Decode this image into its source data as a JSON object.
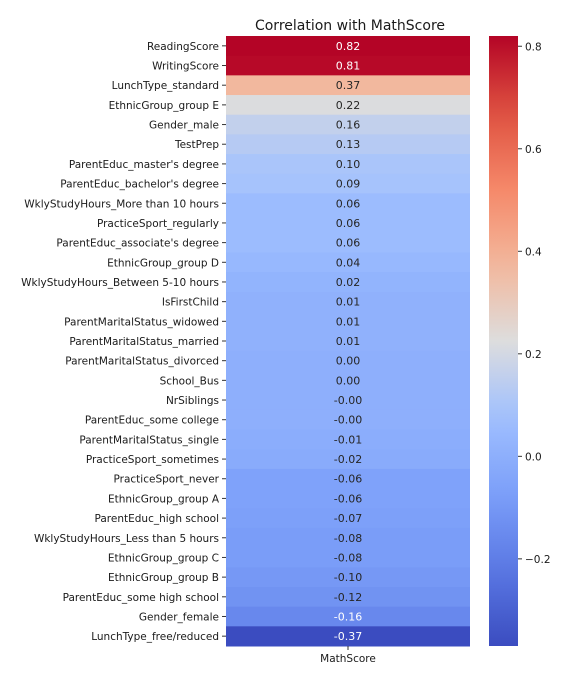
{
  "chart_data": {
    "type": "heatmap",
    "title": "Correlation with MathScore",
    "xlabel": "",
    "ylabel": "",
    "columns": [
      "MathScore"
    ],
    "rows": [
      {
        "label": "ReadingScore",
        "value": 0.82,
        "text": "0.82"
      },
      {
        "label": "WritingScore",
        "value": 0.81,
        "text": "0.81"
      },
      {
        "label": "LunchType_standard",
        "value": 0.37,
        "text": "0.37"
      },
      {
        "label": "EthnicGroup_group E",
        "value": 0.22,
        "text": "0.22"
      },
      {
        "label": "Gender_male",
        "value": 0.16,
        "text": "0.16"
      },
      {
        "label": "TestPrep",
        "value": 0.13,
        "text": "0.13"
      },
      {
        "label": "ParentEduc_master's degree",
        "value": 0.1,
        "text": "0.10"
      },
      {
        "label": "ParentEduc_bachelor's degree",
        "value": 0.09,
        "text": "0.09"
      },
      {
        "label": "WklyStudyHours_More than 10 hours",
        "value": 0.06,
        "text": "0.06"
      },
      {
        "label": "PracticeSport_regularly",
        "value": 0.06,
        "text": "0.06"
      },
      {
        "label": "ParentEduc_associate's degree",
        "value": 0.06,
        "text": "0.06"
      },
      {
        "label": "EthnicGroup_group D",
        "value": 0.04,
        "text": "0.04"
      },
      {
        "label": "WklyStudyHours_Between 5-10 hours",
        "value": 0.02,
        "text": "0.02"
      },
      {
        "label": "IsFirstChild",
        "value": 0.01,
        "text": "0.01"
      },
      {
        "label": "ParentMaritalStatus_widowed",
        "value": 0.01,
        "text": "0.01"
      },
      {
        "label": "ParentMaritalStatus_married",
        "value": 0.01,
        "text": "0.01"
      },
      {
        "label": "ParentMaritalStatus_divorced",
        "value": 0.0,
        "text": "0.00"
      },
      {
        "label": "School_Bus",
        "value": 0.0,
        "text": "0.00"
      },
      {
        "label": "NrSiblings",
        "value": -0.0,
        "text": "-0.00"
      },
      {
        "label": "ParentEduc_some college",
        "value": -0.0,
        "text": "-0.00"
      },
      {
        "label": "ParentMaritalStatus_single",
        "value": -0.01,
        "text": "-0.01"
      },
      {
        "label": "PracticeSport_sometimes",
        "value": -0.02,
        "text": "-0.02"
      },
      {
        "label": "PracticeSport_never",
        "value": -0.06,
        "text": "-0.06"
      },
      {
        "label": "EthnicGroup_group A",
        "value": -0.06,
        "text": "-0.06"
      },
      {
        "label": "ParentEduc_high school",
        "value": -0.07,
        "text": "-0.07"
      },
      {
        "label": "WklyStudyHours_Less than 5 hours",
        "value": -0.08,
        "text": "-0.08"
      },
      {
        "label": "EthnicGroup_group C",
        "value": -0.08,
        "text": "-0.08"
      },
      {
        "label": "EthnicGroup_group B",
        "value": -0.1,
        "text": "-0.10"
      },
      {
        "label": "ParentEduc_some high school",
        "value": -0.12,
        "text": "-0.12"
      },
      {
        "label": "Gender_female",
        "value": -0.16,
        "text": "-0.16"
      },
      {
        "label": "LunchType_free/reduced",
        "value": -0.37,
        "text": "-0.37"
      }
    ],
    "colorscale": "coolwarm",
    "color_range": [
      -0.37,
      0.82
    ],
    "colorbar_ticks": [
      {
        "value": 0.8,
        "label": "0.8"
      },
      {
        "value": 0.6,
        "label": "0.6"
      },
      {
        "value": 0.4,
        "label": "0.4"
      },
      {
        "value": 0.2,
        "label": "0.2"
      },
      {
        "value": 0.0,
        "label": "0.0"
      },
      {
        "value": -0.2,
        "label": "−0.2"
      }
    ],
    "grid": false
  }
}
